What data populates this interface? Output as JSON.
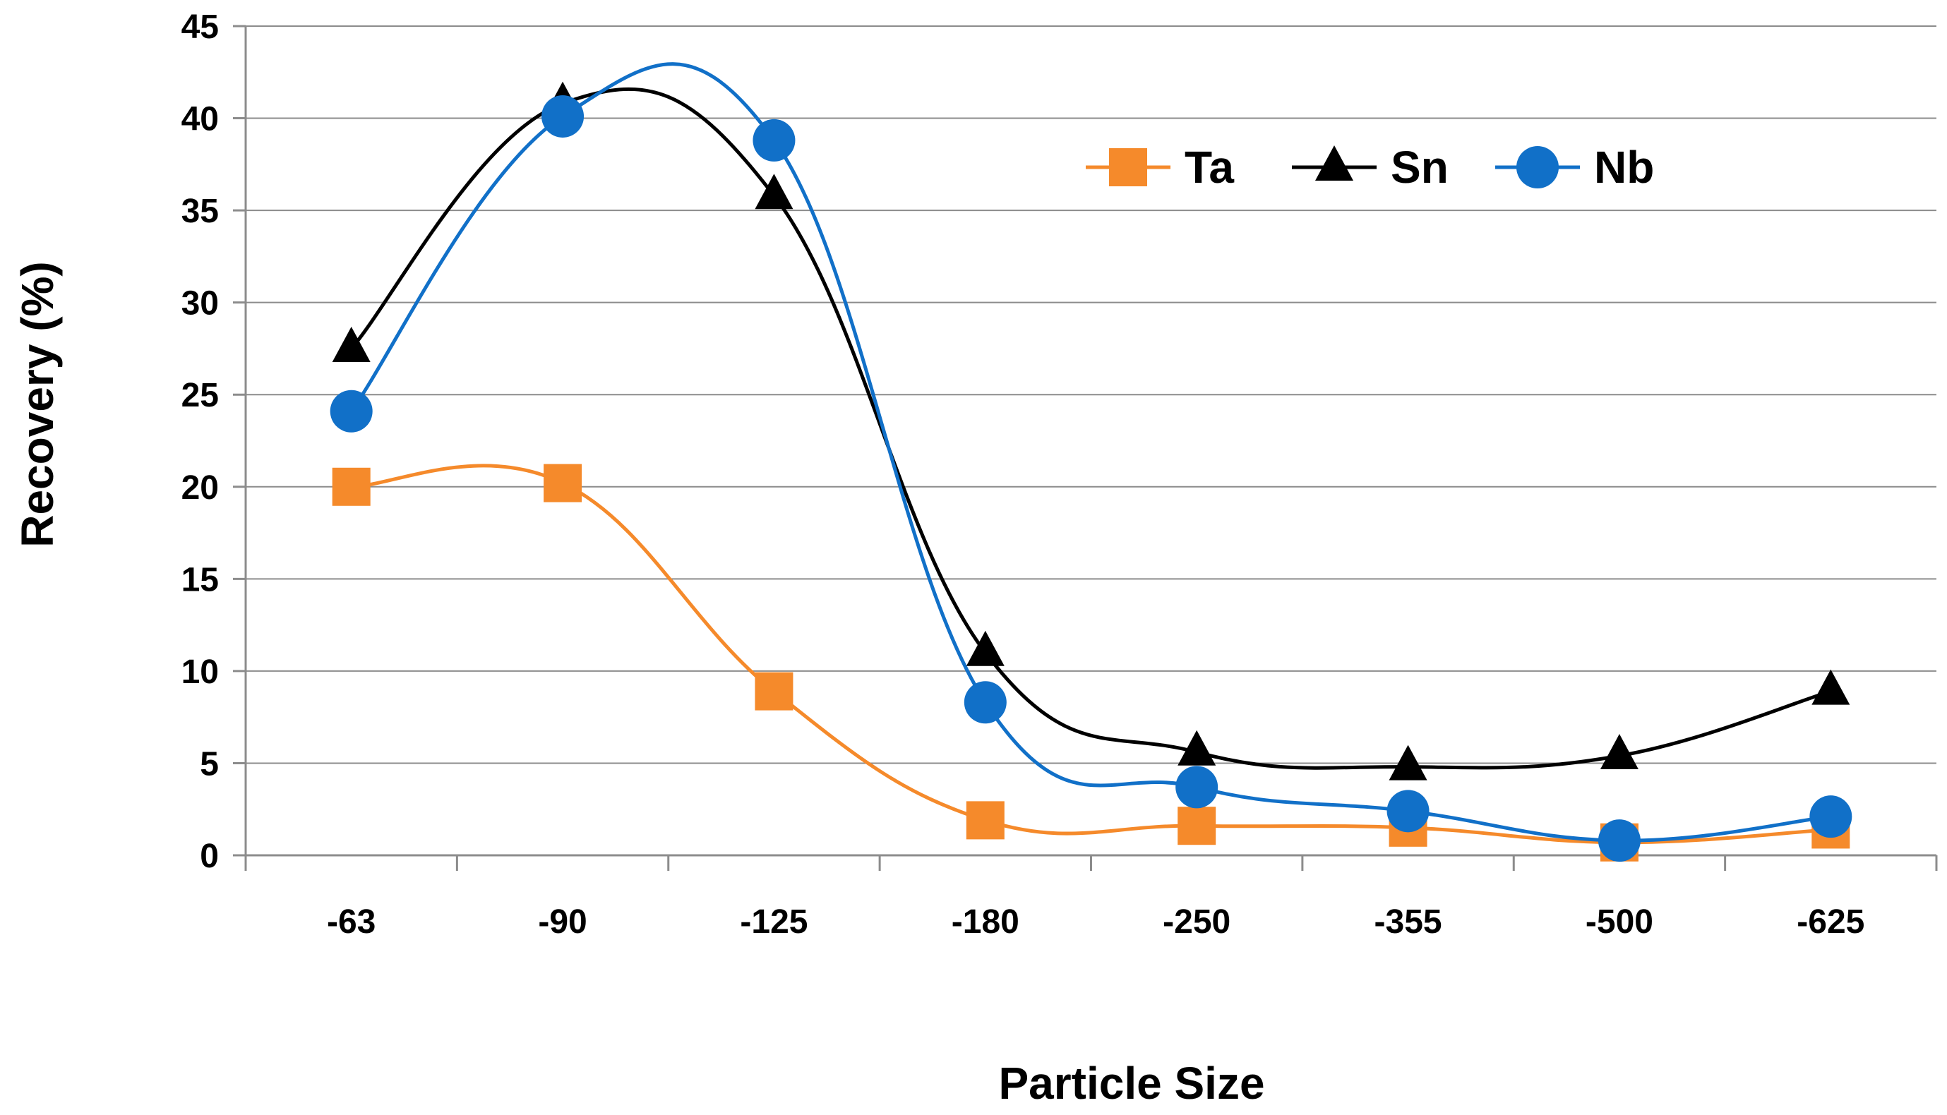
{
  "chart_data": {
    "type": "line",
    "title": "",
    "xlabel": "Particle Size",
    "ylabel": "Recovery (%)",
    "categories": [
      "-63",
      "-90",
      "-125",
      "-180",
      "-250",
      "-355",
      "-500",
      "-625"
    ],
    "ylim": [
      0,
      45
    ],
    "yticks": [
      0,
      5,
      10,
      15,
      20,
      25,
      30,
      35,
      40,
      45
    ],
    "grid": true,
    "smooth": true,
    "legend_position": "top-right",
    "series": [
      {
        "name": "Ta",
        "color": "#F58A2B",
        "marker": "square",
        "values": [
          20.0,
          20.2,
          8.9,
          1.9,
          1.6,
          1.5,
          0.7,
          1.4
        ]
      },
      {
        "name": "Sn",
        "color": "#000000",
        "marker": "triangle",
        "values": [
          27.5,
          40.8,
          35.8,
          11.0,
          5.6,
          4.8,
          5.4,
          8.9
        ]
      },
      {
        "name": "Nb",
        "color": "#1170C8",
        "marker": "circle",
        "values": [
          24.1,
          40.1,
          38.8,
          8.3,
          3.7,
          2.4,
          0.8,
          2.1
        ]
      }
    ]
  }
}
